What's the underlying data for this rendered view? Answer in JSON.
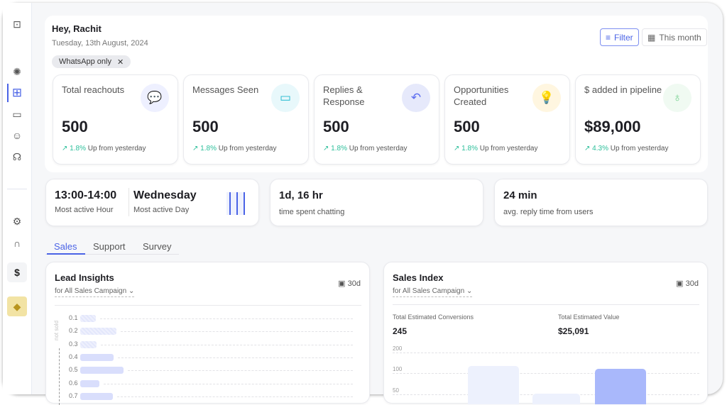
{
  "sidebar": {
    "items": [
      {
        "icon": "panel-toggle-icon"
      },
      {
        "icon": "celebration-icon"
      },
      {
        "icon": "dashboard-grid-icon",
        "active": true
      },
      {
        "icon": "chat-icon"
      },
      {
        "icon": "contact-icon"
      },
      {
        "icon": "brain-icon"
      },
      {
        "icon": "settings-icon"
      },
      {
        "icon": "integrations-icon"
      },
      {
        "icon": "dollar-cycle-icon"
      },
      {
        "icon": "diamond-icon"
      }
    ]
  },
  "header": {
    "greeting": "Hey, Rachit",
    "date": "Tuesday, 13th August, 2024",
    "chip": "WhatsApp only",
    "filter_label": "Filter",
    "period_label": "This month"
  },
  "stats": [
    {
      "title": "Total reachouts",
      "value": "500",
      "pct": "1.8%",
      "delta": "Up from yesterday",
      "icon": "chat-bubbles-icon",
      "color": "#5b6cf0",
      "bg": "#eef0ff"
    },
    {
      "title": "Messages Seen",
      "value": "500",
      "pct": "1.8%",
      "delta": "Up from yesterday",
      "icon": "message-seen-icon",
      "color": "#22b8cf",
      "bg": "#e8f8fb"
    },
    {
      "title": "Replies & Response",
      "value": "500",
      "pct": "1.8%",
      "delta": "Up from yesterday",
      "icon": "reply-all-icon",
      "color": "#5b6cf0",
      "bg": "#e6e9fb"
    },
    {
      "title": "Opportunities Created",
      "value": "500",
      "pct": "1.8%",
      "delta": "Up from yesterday",
      "icon": "lightbulb-icon",
      "color": "#f5b82e",
      "bg": "#fff6e0"
    },
    {
      "title": "$ added in pipeline",
      "value": "$89,000",
      "pct": "4.3%",
      "delta": "Up from yesterday",
      "icon": "money-bag-icon",
      "color": "#6fcf8a",
      "bg": "#f0faf2"
    }
  ],
  "activity": {
    "hour": "13:00-14:00",
    "hour_label": "Most active Hour",
    "day": "Wednesday",
    "day_label": "Most active Day"
  },
  "chatting": {
    "value": "1d, 16 hr",
    "label": "time spent chatting"
  },
  "reply": {
    "value": "24 min",
    "label": "avg. reply time from users"
  },
  "tabs": [
    "Sales",
    "Support",
    "Survey"
  ],
  "accent": "#4a63e6",
  "lead": {
    "title": "Lead Insights",
    "subtitle": "for All Sales Campaign",
    "range": "30d",
    "axis_label": "not sold"
  },
  "sales": {
    "title": "Sales Index",
    "subtitle": "for All Sales Campaign",
    "range": "30d",
    "conv_label": "Total Estimated Conversions",
    "conv_value": "245",
    "value_label": "Total Estimated Value",
    "value_value": "$25,091"
  },
  "chart_data": [
    {
      "type": "bar",
      "orientation": "horizontal",
      "categories": [
        "0.1",
        "0.2",
        "0.3",
        "0.4",
        "0.5",
        "0.6",
        "0.7"
      ],
      "values": [
        0.36,
        0.84,
        0.38,
        0.77,
        1.0,
        0.44,
        0.75
      ],
      "not_sold": [
        "0.1",
        "0.2",
        "0.3"
      ]
    },
    {
      "type": "bar",
      "y_ticks": [
        "200",
        "100",
        "50"
      ],
      "values": [
        135,
        52,
        120
      ],
      "colors": [
        "#edf1fd",
        "#edf1fd",
        "#a9b8fb"
      ]
    }
  ]
}
